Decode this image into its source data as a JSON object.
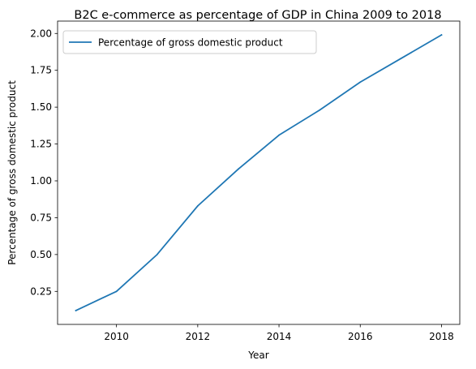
{
  "chart_data": {
    "type": "line",
    "title": "B2C e-commerce as percentage of GDP in China 2009 to 2018",
    "xlabel": "Year",
    "ylabel": "Percentage of gross domestic product",
    "x": [
      2009,
      2010,
      2011,
      2012,
      2013,
      2014,
      2015,
      2016,
      2017,
      2018
    ],
    "series": [
      {
        "name": "Percentage of gross domestic product",
        "color": "#1f77b4",
        "values": [
          0.12,
          0.25,
          0.5,
          0.83,
          1.08,
          1.31,
          1.48,
          1.67,
          1.83,
          1.99
        ]
      }
    ],
    "xlim": [
      2008.55,
      2018.45
    ],
    "ylim": [
      0.026,
      2.084
    ],
    "xticks": [
      2010,
      2012,
      2014,
      2016,
      2018
    ],
    "xtick_labels": [
      "2010",
      "2012",
      "2014",
      "2016",
      "2018"
    ],
    "yticks": [
      0.25,
      0.5,
      0.75,
      1.0,
      1.25,
      1.5,
      1.75,
      2.0
    ],
    "ytick_labels": [
      "0.25",
      "0.50",
      "0.75",
      "1.00",
      "1.25",
      "1.50",
      "1.75",
      "2.00"
    ],
    "grid": false,
    "legend_position": "upper-left"
  }
}
